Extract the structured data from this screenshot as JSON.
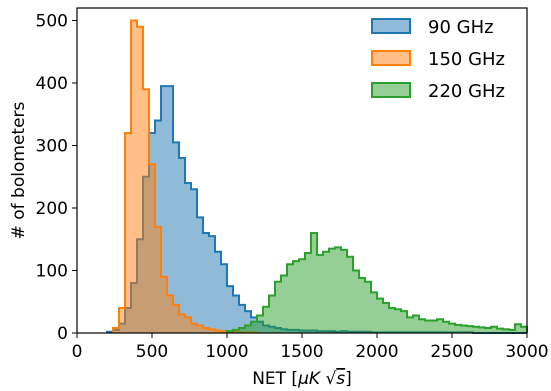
{
  "chart_data": {
    "type": "histogram",
    "xlabel_prefix": "NET [",
    "xlabel_unit": "μK",
    "xlabel_sqrt": "√",
    "xlabel_var": "s",
    "xlabel_suffix": "]",
    "ylabel": "# of bolometers",
    "xlim": [
      0,
      3000
    ],
    "ylim": [
      0,
      520
    ],
    "xticks": [
      "0",
      "500",
      "1000",
      "1500",
      "2000",
      "2500",
      "3000"
    ],
    "yticks": [
      "0",
      "100",
      "200",
      "300",
      "400",
      "500"
    ],
    "xtick_values": [
      0,
      500,
      1000,
      1500,
      2000,
      2500,
      3000
    ],
    "ytick_values": [
      0,
      100,
      200,
      300,
      400,
      500
    ],
    "legend_position": "upper-right",
    "series": [
      {
        "name": "90 GHz",
        "color": "#1f77b4",
        "bin_edges": [
          200,
          240,
          280,
          320,
          360,
          400,
          440,
          480,
          520,
          560,
          600,
          640,
          680,
          720,
          760,
          800,
          840,
          880,
          920,
          960,
          1000,
          1040,
          1080,
          1120,
          1160,
          1200,
          1240,
          1280,
          1320,
          1360,
          1400,
          1440,
          1480,
          1520,
          1560,
          1600,
          1640,
          1680,
          1720,
          1760,
          1800,
          1840,
          1880,
          1920,
          1960,
          2000,
          2040,
          2080,
          2120,
          2160,
          2200,
          2240,
          2280,
          2320,
          2360,
          2400,
          2440,
          2480,
          2520,
          2560,
          2600,
          2640,
          2680,
          2720,
          2760,
          2800,
          2840,
          2880,
          2920,
          2960,
          3000
        ],
        "counts": [
          2,
          5,
          15,
          40,
          80,
          150,
          250,
          320,
          340,
          395,
          395,
          305,
          280,
          240,
          230,
          185,
          160,
          155,
          130,
          110,
          75,
          60,
          45,
          35,
          25,
          18,
          12,
          10,
          8,
          6,
          5,
          5,
          4,
          4,
          4,
          3,
          3,
          3,
          2,
          3,
          2,
          2,
          2,
          2,
          1,
          1,
          1,
          1,
          1,
          1,
          1,
          1,
          1,
          1,
          1,
          1,
          1,
          1,
          1,
          1,
          1,
          0,
          0,
          0,
          0,
          0,
          0,
          0,
          0,
          0
        ]
      },
      {
        "name": "150 GHz",
        "color": "#ff7f0e",
        "bin_edges": [
          240,
          280,
          320,
          360,
          400,
          440,
          480,
          520,
          560,
          600,
          640,
          680,
          720,
          760,
          800,
          840,
          880,
          920,
          960,
          1000,
          1040,
          1080,
          1120,
          1160,
          1200
        ],
        "counts": [
          8,
          40,
          320,
          500,
          490,
          390,
          270,
          170,
          90,
          60,
          45,
          30,
          25,
          15,
          12,
          8,
          6,
          4,
          3,
          2,
          2,
          1,
          1,
          1
        ]
      },
      {
        "name": "220 GHz",
        "color": "#2ca02c",
        "bin_edges": [
          1000,
          1040,
          1080,
          1120,
          1160,
          1200,
          1240,
          1280,
          1320,
          1360,
          1400,
          1440,
          1480,
          1520,
          1560,
          1600,
          1640,
          1680,
          1720,
          1760,
          1800,
          1840,
          1880,
          1920,
          1960,
          2000,
          2040,
          2080,
          2120,
          2160,
          2200,
          2240,
          2280,
          2320,
          2360,
          2400,
          2440,
          2480,
          2520,
          2560,
          2600,
          2640,
          2680,
          2720,
          2760,
          2800,
          2840,
          2880,
          2920,
          2960,
          3000
        ],
        "counts": [
          3,
          5,
          8,
          12,
          18,
          28,
          42,
          60,
          82,
          92,
          110,
          115,
          118,
          128,
          160,
          125,
          130,
          135,
          137,
          133,
          122,
          100,
          88,
          82,
          65,
          55,
          48,
          40,
          38,
          35,
          25,
          28,
          22,
          20,
          20,
          22,
          18,
          15,
          13,
          12,
          11,
          10,
          9,
          8,
          10,
          7,
          6,
          5,
          14,
          10
        ]
      }
    ]
  }
}
